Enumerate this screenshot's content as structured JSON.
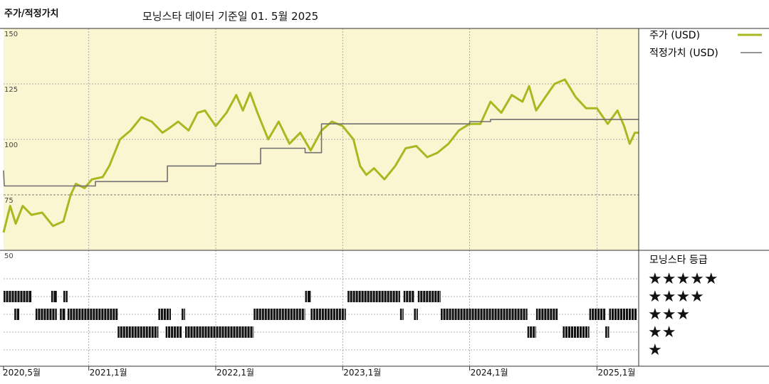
{
  "header": {
    "title": "주가/적정가치",
    "subtitle": "모닝스타 데이터 기준일 01. 5월 2025"
  },
  "legend": {
    "price_label": "주가 (USD)",
    "fair_label": "적정가치 (USD)",
    "rating_label": "모닝스타 등급",
    "star_rows": [
      "★★★★★",
      "★★★★",
      "★★★",
      "★★",
      "★"
    ]
  },
  "colors": {
    "price": "#a8b820",
    "fair": "#707070",
    "plot_bg": "#fbf6d2",
    "grid": "#999999",
    "rating": "#111111"
  },
  "chart_data": {
    "type": "line",
    "title": "주가/적정가치",
    "y_ticks": [
      50,
      75,
      100,
      125,
      150
    ],
    "ylim": [
      50,
      150
    ],
    "x_ticks": [
      {
        "label": "2020,5월",
        "date": "2020-05"
      },
      {
        "label": "2021,1월",
        "date": "2021-01"
      },
      {
        "label": "2022,1월",
        "date": "2022-01"
      },
      {
        "label": "2023,1월",
        "date": "2023-01"
      },
      {
        "label": "2024,1월",
        "date": "2024-01"
      },
      {
        "label": "2025,1월",
        "date": "2025-01"
      }
    ],
    "xlim": [
      "2020-05-01",
      "2025-05-01"
    ],
    "series": [
      {
        "name": "주가 (USD)",
        "points": [
          [
            "2020-05-01",
            58
          ],
          [
            "2020-05-20",
            70
          ],
          [
            "2020-06-05",
            62
          ],
          [
            "2020-06-25",
            70
          ],
          [
            "2020-07-20",
            66
          ],
          [
            "2020-08-20",
            67
          ],
          [
            "2020-09-20",
            61
          ],
          [
            "2020-10-20",
            63
          ],
          [
            "2020-11-10",
            75
          ],
          [
            "2020-11-25",
            80
          ],
          [
            "2020-12-20",
            78
          ],
          [
            "2021-01-10",
            82
          ],
          [
            "2021-02-10",
            83
          ],
          [
            "2021-03-01",
            88
          ],
          [
            "2021-04-01",
            100
          ],
          [
            "2021-05-01",
            104
          ],
          [
            "2021-06-01",
            110
          ],
          [
            "2021-07-01",
            108
          ],
          [
            "2021-08-01",
            103
          ],
          [
            "2021-08-20",
            105
          ],
          [
            "2021-09-15",
            108
          ],
          [
            "2021-10-15",
            104
          ],
          [
            "2021-11-10",
            112
          ],
          [
            "2021-12-01",
            113
          ],
          [
            "2022-01-01",
            106
          ],
          [
            "2022-02-01",
            112
          ],
          [
            "2022-03-01",
            120
          ],
          [
            "2022-03-20",
            113
          ],
          [
            "2022-04-10",
            121
          ],
          [
            "2022-05-01",
            112
          ],
          [
            "2022-06-01",
            100
          ],
          [
            "2022-07-01",
            108
          ],
          [
            "2022-08-01",
            98
          ],
          [
            "2022-09-01",
            103
          ],
          [
            "2022-10-01",
            95
          ],
          [
            "2022-11-01",
            104
          ],
          [
            "2022-12-01",
            108
          ],
          [
            "2023-01-01",
            106
          ],
          [
            "2023-02-01",
            100
          ],
          [
            "2023-02-20",
            88
          ],
          [
            "2023-03-10",
            84
          ],
          [
            "2023-04-01",
            87
          ],
          [
            "2023-05-01",
            82
          ],
          [
            "2023-06-01",
            88
          ],
          [
            "2023-07-01",
            96
          ],
          [
            "2023-08-01",
            97
          ],
          [
            "2023-09-01",
            92
          ],
          [
            "2023-10-01",
            94
          ],
          [
            "2023-11-01",
            98
          ],
          [
            "2023-12-01",
            104
          ],
          [
            "2024-01-01",
            107
          ],
          [
            "2024-02-01",
            107
          ],
          [
            "2024-03-01",
            117
          ],
          [
            "2024-04-01",
            112
          ],
          [
            "2024-05-01",
            120
          ],
          [
            "2024-06-01",
            117
          ],
          [
            "2024-06-20",
            124
          ],
          [
            "2024-07-10",
            113
          ],
          [
            "2024-08-01",
            118
          ],
          [
            "2024-09-01",
            125
          ],
          [
            "2024-10-01",
            127
          ],
          [
            "2024-11-01",
            119
          ],
          [
            "2024-12-01",
            114
          ],
          [
            "2025-01-01",
            114
          ],
          [
            "2025-02-01",
            107
          ],
          [
            "2025-03-01",
            113
          ],
          [
            "2025-03-20",
            106
          ],
          [
            "2025-04-05",
            98
          ],
          [
            "2025-04-20",
            103
          ],
          [
            "2025-05-01",
            103
          ]
        ]
      },
      {
        "name": "적정가치 (USD)",
        "points": [
          [
            "2020-05-01",
            86
          ],
          [
            "2020-05-03",
            79
          ],
          [
            "2021-01-20",
            79
          ],
          [
            "2021-01-20",
            81
          ],
          [
            "2021-08-15",
            81
          ],
          [
            "2021-08-15",
            88
          ],
          [
            "2022-01-01",
            88
          ],
          [
            "2022-01-01",
            89
          ],
          [
            "2022-05-10",
            89
          ],
          [
            "2022-05-10",
            96
          ],
          [
            "2022-09-15",
            96
          ],
          [
            "2022-09-15",
            94
          ],
          [
            "2022-11-01",
            94
          ],
          [
            "2022-11-01",
            107
          ],
          [
            "2024-01-01",
            107
          ],
          [
            "2024-01-01",
            108
          ],
          [
            "2024-03-01",
            108
          ],
          [
            "2024-03-01",
            109
          ],
          [
            "2025-05-01",
            109
          ]
        ]
      }
    ],
    "rating": {
      "name": "모닝스타 등급",
      "levels": [
        5,
        4,
        3,
        2,
        1
      ],
      "segments": [
        {
          "stars": 5,
          "start": "2020-05-01",
          "end": "2020-07-20"
        },
        {
          "stars": 5,
          "start": "2020-09-15",
          "end": "2020-10-01"
        },
        {
          "stars": 5,
          "start": "2020-10-20",
          "end": "2020-11-01"
        },
        {
          "stars": 5,
          "start": "2022-09-15",
          "end": "2022-10-01"
        },
        {
          "stars": 5,
          "start": "2023-01-15",
          "end": "2023-06-15"
        },
        {
          "stars": 5,
          "start": "2023-06-25",
          "end": "2023-07-25"
        },
        {
          "stars": 5,
          "start": "2023-08-05",
          "end": "2023-10-10"
        },
        {
          "stars": 4,
          "start": "2020-06-01",
          "end": "2020-06-15"
        },
        {
          "stars": 4,
          "start": "2020-08-01",
          "end": "2020-10-01"
        },
        {
          "stars": 4,
          "start": "2020-10-10",
          "end": "2020-10-25"
        },
        {
          "stars": 4,
          "start": "2020-11-01",
          "end": "2021-03-25"
        },
        {
          "stars": 4,
          "start": "2021-07-20",
          "end": "2021-08-25"
        },
        {
          "stars": 4,
          "start": "2021-09-25",
          "end": "2021-10-05"
        },
        {
          "stars": 4,
          "start": "2022-04-20",
          "end": "2022-09-15"
        },
        {
          "stars": 4,
          "start": "2022-10-01",
          "end": "2023-01-10"
        },
        {
          "stars": 4,
          "start": "2023-06-15",
          "end": "2023-06-25"
        },
        {
          "stars": 4,
          "start": "2023-07-25",
          "end": "2023-08-05"
        },
        {
          "stars": 4,
          "start": "2023-10-10",
          "end": "2024-06-15"
        },
        {
          "stars": 4,
          "start": "2024-07-10",
          "end": "2024-09-10"
        },
        {
          "stars": 4,
          "start": "2024-12-10",
          "end": "2025-01-25"
        },
        {
          "stars": 4,
          "start": "2025-02-05",
          "end": "2025-04-25"
        },
        {
          "stars": 3,
          "start": "2021-03-25",
          "end": "2021-07-20"
        },
        {
          "stars": 3,
          "start": "2021-08-10",
          "end": "2021-09-25"
        },
        {
          "stars": 3,
          "start": "2021-10-05",
          "end": "2022-04-20"
        },
        {
          "stars": 3,
          "start": "2024-06-15",
          "end": "2024-07-10"
        },
        {
          "stars": 3,
          "start": "2024-09-25",
          "end": "2024-12-10"
        },
        {
          "stars": 3,
          "start": "2025-01-25",
          "end": "2025-02-05"
        }
      ]
    }
  }
}
